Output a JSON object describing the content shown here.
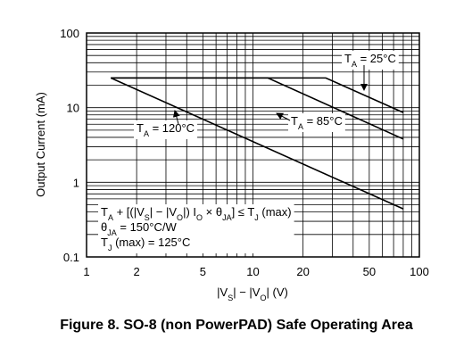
{
  "chart_data": {
    "type": "line",
    "xlog": true,
    "ylog": true,
    "grid": true,
    "color": "#000000",
    "y_label": "Output Current (mA)",
    "x_label": [
      {
        "text": "|V"
      },
      {
        "text": "S",
        "sub": true
      },
      {
        "text": "| − |V"
      },
      {
        "text": "O",
        "sub": true
      },
      {
        "text": "|   (V)"
      }
    ],
    "xlim": [
      1,
      100
    ],
    "ylim": [
      0.1,
      100
    ],
    "xticks": [
      1,
      2,
      5,
      10,
      20,
      50,
      100
    ],
    "yticks": [
      0.1,
      1,
      10,
      100
    ],
    "xgrid": [
      1,
      2,
      3,
      4,
      5,
      6,
      7,
      8,
      9,
      10,
      20,
      30,
      40,
      50,
      60,
      70,
      80,
      90,
      100
    ],
    "ygrid": [
      0.1,
      0.2,
      0.3,
      0.4,
      0.5,
      0.6,
      0.7,
      0.8,
      0.9,
      1,
      2,
      3,
      4,
      5,
      6,
      7,
      8,
      9,
      10,
      20,
      30,
      40,
      50,
      60,
      70,
      80,
      90,
      100
    ],
    "series": [
      {
        "x": [
          1.4,
          80
        ],
        "values": [
          25,
          0.44
        ]
      },
      {
        "x": [
          1.4,
          12.3,
          80
        ],
        "values": [
          25,
          25,
          3.8
        ]
      },
      {
        "x": [
          1.4,
          27.4,
          80
        ],
        "values": [
          25,
          25,
          8.6
        ]
      }
    ],
    "annotations": [
      {
        "lines": [
          [
            {
              "text": "T"
            },
            {
              "text": "A",
              "sub": true
            },
            {
              "text": " = 120°C"
            }
          ]
        ]
      },
      {
        "lines": [
          [
            {
              "text": "T"
            },
            {
              "text": "A",
              "sub": true
            },
            {
              "text": " = 85°C"
            }
          ]
        ]
      },
      {
        "lines": [
          [
            {
              "text": "T"
            },
            {
              "text": "A",
              "sub": true
            },
            {
              "text": " = 25°C"
            }
          ]
        ]
      },
      {
        "lines": [
          [
            {
              "text": "T"
            },
            {
              "text": "A",
              "sub": true
            },
            {
              "text": " + [(|V"
            },
            {
              "text": "S",
              "sub": true
            },
            {
              "text": "| − |V"
            },
            {
              "text": "O",
              "sub": true
            },
            {
              "text": "|) I"
            },
            {
              "text": "O",
              "sub": true
            },
            {
              "text": " × θ"
            },
            {
              "text": "JA",
              "sub": true
            },
            {
              "text": "] ≤ T"
            },
            {
              "text": "J",
              "sub": true
            },
            {
              "text": " (max)"
            }
          ],
          [
            {
              "text": "θ"
            },
            {
              "text": "JA",
              "sub": true
            },
            {
              "text": " = 150°C/W"
            }
          ],
          [
            {
              "text": "T"
            },
            {
              "text": "J",
              "sub": true
            },
            {
              "text": " (max) = 125°C"
            }
          ]
        ]
      }
    ],
    "caption": "Figure 8. SO-8 (non PowerPAD) Safe Operating Area"
  }
}
